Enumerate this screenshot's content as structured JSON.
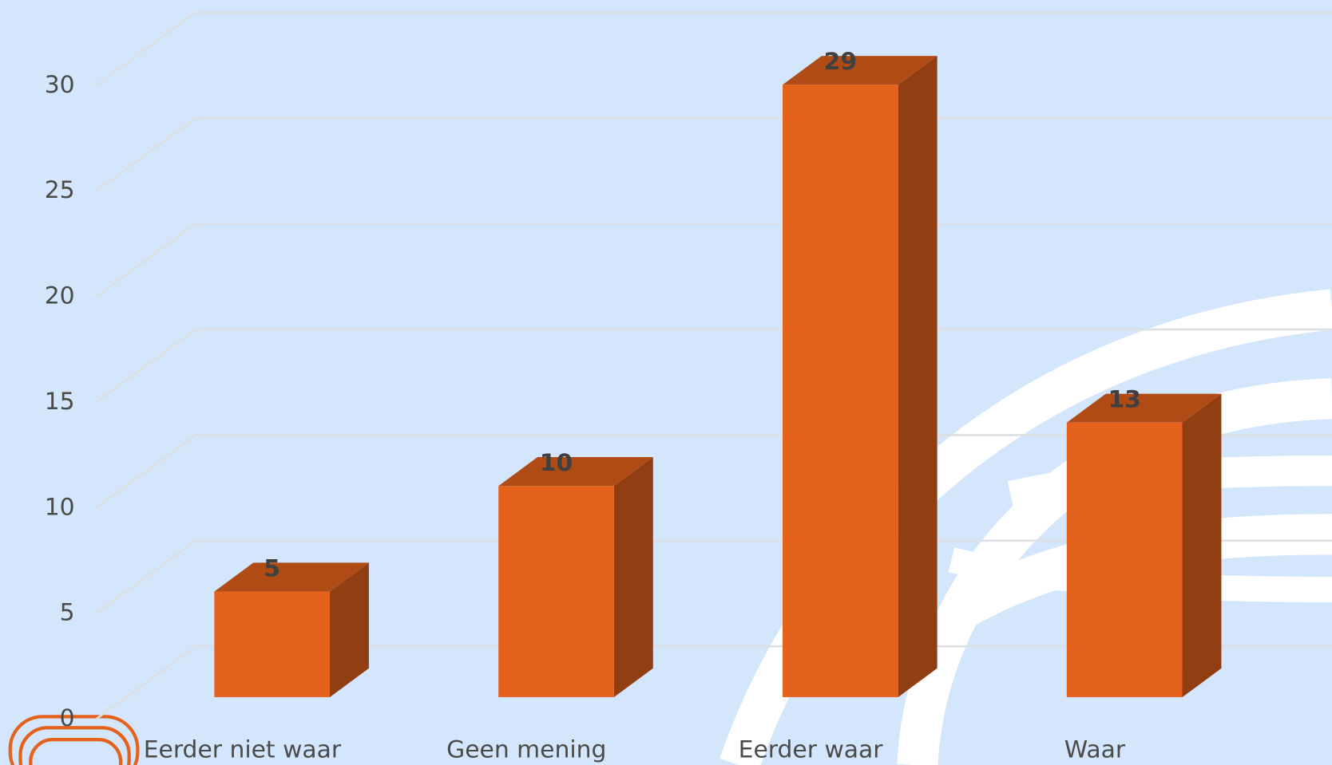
{
  "chart_data": {
    "type": "bar3d",
    "categories": [
      "Eerder niet waar",
      "Geen mening",
      "Eerder waar",
      "Waar"
    ],
    "values": [
      5,
      10,
      29,
      13
    ],
    "color": "#e5621d",
    "ylim": [
      0,
      30
    ],
    "yticks": [
      0,
      5,
      10,
      15,
      20,
      25,
      30
    ],
    "grid": true,
    "data_labels": true
  }
}
